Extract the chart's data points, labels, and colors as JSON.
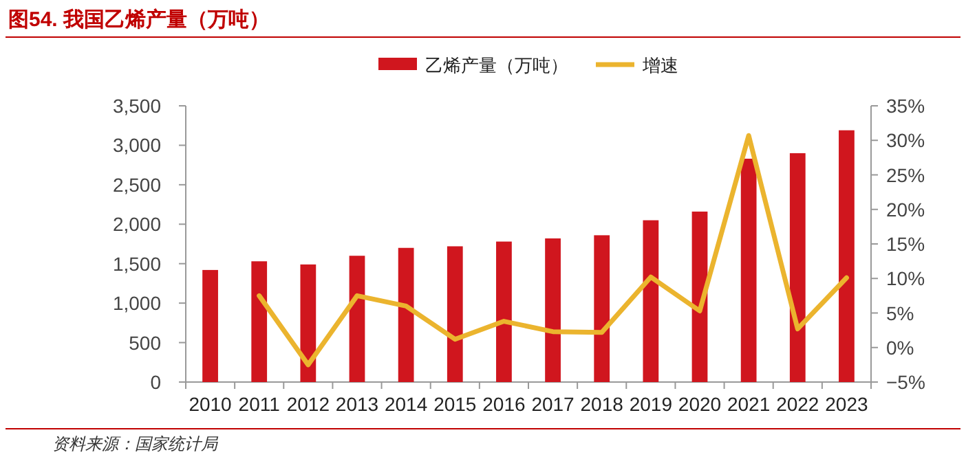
{
  "chart_data": {
    "type": "bar",
    "title": "图54. 我国乙烯产量（万吨）",
    "categories": [
      "2010",
      "2011",
      "2012",
      "2013",
      "2014",
      "2015",
      "2016",
      "2017",
      "2018",
      "2019",
      "2020",
      "2021",
      "2022",
      "2023"
    ],
    "series": [
      {
        "name": "乙烯产量（万吨）",
        "color": "#d0161e",
        "values": [
          1420,
          1530,
          1490,
          1600,
          1700,
          1720,
          1780,
          1820,
          1860,
          2050,
          2160,
          2830,
          2900,
          3190
        ]
      },
      {
        "name": "增速",
        "type": "line",
        "axis": "y2",
        "color": "#ebb42e",
        "values": [
          null,
          7.5,
          -2.5,
          7.5,
          6.0,
          1.2,
          3.8,
          2.3,
          2.2,
          10.2,
          5.3,
          30.7,
          2.7,
          10.1
        ]
      }
    ],
    "ylim": [
      0,
      3500
    ],
    "yticks": [
      {
        "value": 0,
        "label": "0"
      },
      {
        "value": 500,
        "label": "500"
      },
      {
        "value": 1000,
        "label": "1,000"
      },
      {
        "value": 1500,
        "label": "1,500"
      },
      {
        "value": 2000,
        "label": "2,000"
      },
      {
        "value": 2500,
        "label": "2,500"
      },
      {
        "value": 3000,
        "label": "3,000"
      },
      {
        "value": 3500,
        "label": "3,500"
      }
    ],
    "y2lim": [
      -5,
      35
    ],
    "y2ticks": [
      {
        "value": -5,
        "label": "−5%"
      },
      {
        "value": 0,
        "label": "0%"
      },
      {
        "value": 5,
        "label": "5%"
      },
      {
        "value": 10,
        "label": "10%"
      },
      {
        "value": 15,
        "label": "15%"
      },
      {
        "value": 20,
        "label": "20%"
      },
      {
        "value": 25,
        "label": "25%"
      },
      {
        "value": 30,
        "label": "30%"
      },
      {
        "value": 35,
        "label": "35%"
      }
    ],
    "legend": "top",
    "grid": false,
    "marker": "none",
    "annotations": [
      "资料来源：国家统计局"
    ]
  }
}
